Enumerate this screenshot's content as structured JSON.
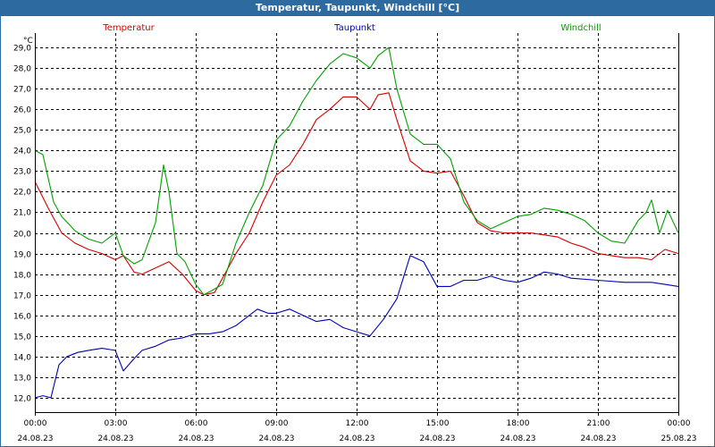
{
  "window": {
    "title": "Temperatur, Taupunkt, Windchill [°C]"
  },
  "colors": {
    "titlebar": "#2d6aa0",
    "temperatur": "#d40000",
    "taupunkt": "#0000b4",
    "windchill": "#00a000",
    "grid": "#000000"
  },
  "chart_data": {
    "type": "line",
    "title": "Temperatur, Taupunkt, Windchill [°C]",
    "ylabel": "°C",
    "ylim": [
      11.3,
      29.7
    ],
    "yticks": [
      "12,0",
      "13,0",
      "14,0",
      "15,0",
      "16,0",
      "17,0",
      "18,0",
      "19,0",
      "20,0",
      "21,0",
      "22,0",
      "23,0",
      "24,0",
      "25,0",
      "26,0",
      "27,0",
      "28,0",
      "29,0"
    ],
    "xlim": [
      0,
      24
    ],
    "xticks": [
      {
        "time": "00:00",
        "date": "24.08.23"
      },
      {
        "time": "03:00",
        "date": "24.08.23"
      },
      {
        "time": "06:00",
        "date": "24.08.23"
      },
      {
        "time": "09:00",
        "date": "24.08.23"
      },
      {
        "time": "12:00",
        "date": "24.08.23"
      },
      {
        "time": "15:00",
        "date": "24.08.23"
      },
      {
        "time": "18:00",
        "date": "24.08.23"
      },
      {
        "time": "21:00",
        "date": "24.08.23"
      },
      {
        "time": "00:00",
        "date": "25.08.23"
      }
    ],
    "grid": true,
    "legend_position": "top",
    "series": [
      {
        "name": "Temperatur",
        "color": "#d40000",
        "x": [
          0,
          0.5,
          1,
          1.5,
          2,
          2.5,
          3,
          3.3,
          3.7,
          4,
          4.5,
          5,
          5.5,
          6,
          6.3,
          6.7,
          7,
          7.5,
          8,
          8.5,
          9,
          9.5,
          10,
          10.5,
          11,
          11.5,
          12,
          12.5,
          12.8,
          13.2,
          13.5,
          14,
          14.5,
          15,
          15.5,
          16,
          16.5,
          17,
          17.5,
          18,
          18.5,
          19,
          19.5,
          20,
          20.5,
          21,
          21.5,
          22,
          22.5,
          23,
          23.5,
          24
        ],
        "values": [
          22.5,
          21.2,
          20.0,
          19.5,
          19.2,
          19.0,
          18.7,
          18.9,
          18.1,
          18.0,
          18.3,
          18.6,
          18.0,
          17.2,
          17.0,
          17.1,
          17.8,
          19.0,
          20.0,
          21.5,
          22.8,
          23.3,
          24.3,
          25.5,
          26.0,
          26.6,
          26.6,
          26.0,
          26.7,
          26.8,
          25.5,
          23.5,
          23.0,
          22.9,
          23.0,
          21.8,
          20.5,
          20.1,
          20.0,
          20.0,
          20.0,
          19.9,
          19.8,
          19.5,
          19.3,
          19.0,
          18.9,
          18.8,
          18.8,
          18.7,
          19.2,
          19.0
        ]
      },
      {
        "name": "Taupunkt",
        "color": "#0000b4",
        "x": [
          0,
          0.3,
          0.6,
          0.9,
          1.2,
          1.6,
          2,
          2.5,
          3,
          3.3,
          3.7,
          4,
          4.5,
          5,
          5.5,
          6,
          6.5,
          7,
          7.5,
          8,
          8.3,
          8.7,
          9,
          9.5,
          10,
          10.5,
          11,
          11.5,
          12,
          12.5,
          13,
          13.5,
          14,
          14.5,
          15,
          15.5,
          16,
          16.5,
          17,
          17.5,
          18,
          18.5,
          19,
          19.5,
          20,
          21,
          22,
          23,
          23.5,
          24
        ],
        "values": [
          12.0,
          12.1,
          12.0,
          13.6,
          14.0,
          14.2,
          14.3,
          14.4,
          14.3,
          13.3,
          13.9,
          14.3,
          14.5,
          14.8,
          14.9,
          15.1,
          15.1,
          15.2,
          15.5,
          16.0,
          16.3,
          16.1,
          16.1,
          16.3,
          16.0,
          15.7,
          15.8,
          15.4,
          15.2,
          15.0,
          15.8,
          16.8,
          18.9,
          18.6,
          17.4,
          17.4,
          17.7,
          17.7,
          17.9,
          17.7,
          17.6,
          17.8,
          18.1,
          18.0,
          17.8,
          17.7,
          17.6,
          17.6,
          17.5,
          17.4
        ]
      },
      {
        "name": "Windchill",
        "color": "#00a000",
        "x": [
          0,
          0.3,
          0.7,
          1,
          1.5,
          2,
          2.5,
          3,
          3.3,
          3.7,
          4,
          4.5,
          4.8,
          5,
          5.3,
          5.6,
          6,
          6.3,
          6.6,
          7,
          7.5,
          8,
          8.5,
          9,
          9.5,
          10,
          10.5,
          11,
          11.5,
          12,
          12.5,
          12.8,
          13.2,
          13.5,
          14,
          14.5,
          15,
          15.5,
          16,
          16.5,
          17,
          17.5,
          18,
          18.5,
          19,
          19.5,
          20,
          20.5,
          21,
          21.5,
          22,
          22.5,
          22.8,
          23,
          23.3,
          23.6,
          24
        ],
        "values": [
          24.0,
          23.8,
          21.5,
          20.8,
          20.1,
          19.7,
          19.5,
          20.0,
          18.9,
          18.5,
          18.7,
          20.5,
          23.3,
          22.0,
          19.0,
          18.6,
          17.5,
          17.0,
          17.2,
          17.5,
          19.5,
          21.0,
          22.3,
          24.5,
          25.2,
          26.4,
          27.4,
          28.2,
          28.7,
          28.5,
          28.0,
          28.6,
          29.0,
          27.0,
          24.8,
          24.3,
          24.3,
          23.6,
          21.5,
          20.6,
          20.2,
          20.5,
          20.8,
          20.9,
          21.2,
          21.1,
          20.9,
          20.6,
          20.0,
          19.6,
          19.5,
          20.6,
          21.0,
          21.6,
          20.0,
          21.1,
          20.0
        ]
      }
    ]
  }
}
